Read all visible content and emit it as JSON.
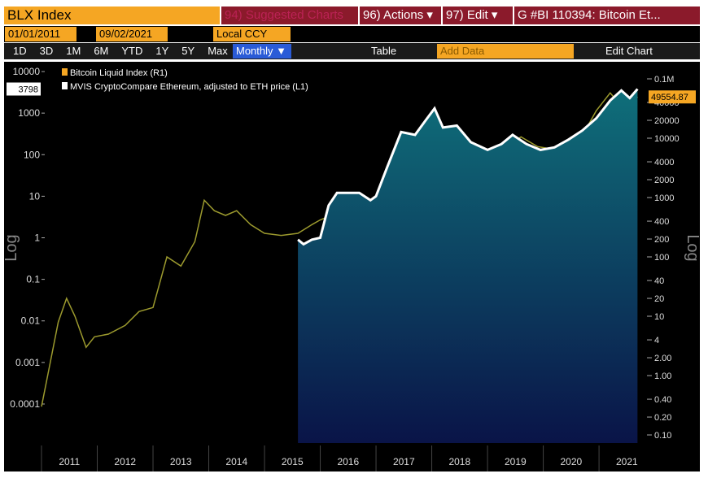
{
  "toolbar": {
    "ticker": "BLX Index",
    "suggested": "94) Suggested Charts",
    "actions": "96) Actions ▾",
    "edit": "97) Edit ▾",
    "chart_id": "G #BI 110394: Bitcoin Et...",
    "start_date": "01/01/2011",
    "end_date": "09/02/2021",
    "currency": "Local CCY",
    "periods": [
      "1D",
      "3D",
      "1M",
      "6M",
      "YTD",
      "1Y",
      "5Y",
      "Max"
    ],
    "frequency": "Monthly ▼",
    "table": "Table",
    "add_data": "Add Data",
    "edit_chart": "Edit Chart"
  },
  "chart_data": {
    "type": "line",
    "y_scale": "log",
    "y_label": "Log",
    "y2_label": "Log",
    "legend": "top-left",
    "xlim": [
      2011,
      2021.86
    ],
    "xticks": [
      2011,
      2012,
      2013,
      2014,
      2015,
      2016,
      2017,
      2018,
      2019,
      2020,
      2021
    ],
    "ylim": [
      1.15e-05,
      15700
    ],
    "yticks": [
      0.0001,
      0.001,
      0.01,
      0.1,
      1,
      10,
      100,
      1000,
      10000
    ],
    "y2lim": [
      0.073,
      182000
    ],
    "y2ticks": [
      {
        "value": 100000,
        "label": "0.1M"
      },
      40000,
      20000,
      10000,
      4000,
      2000,
      1000,
      400,
      200,
      100,
      40,
      20,
      10,
      4,
      {
        "value": 2,
        "label": "2.00"
      },
      {
        "value": 1,
        "label": "1.00"
      },
      {
        "value": 0.4,
        "label": "0.40"
      },
      {
        "value": 0.2,
        "label": "0.20"
      },
      {
        "value": 0.1,
        "label": "0.10"
      }
    ],
    "series": [
      {
        "name": "Bitcoin Liquid Index (R1)",
        "color": "#9c9a2e",
        "axis": "y2",
        "x": [
          2011.0,
          2011.1,
          2011.3,
          2011.45,
          2011.6,
          2011.8,
          2011.95,
          2012.2,
          2012.5,
          2012.75,
          2013.0,
          2013.25,
          2013.5,
          2013.75,
          2013.92,
          2014.1,
          2014.3,
          2014.5,
          2014.75,
          2015.0,
          2015.3,
          2015.6,
          2015.85,
          2016.0,
          2016.4,
          2016.6,
          2016.9,
          2017.2,
          2017.5,
          2017.75,
          2017.95,
          2018.1,
          2018.3,
          2018.6,
          2018.9,
          2019.1,
          2019.4,
          2019.6,
          2019.9,
          2020.2,
          2020.45,
          2020.7,
          2020.95,
          2021.2,
          2021.4,
          2021.55,
          2021.69
        ],
        "values": [
          0.3,
          0.9,
          8,
          20,
          10,
          3,
          4.5,
          5,
          7,
          12,
          14,
          100,
          70,
          180,
          900,
          600,
          500,
          600,
          350,
          250,
          230,
          250,
          350,
          420,
          600,
          650,
          900,
          1100,
          2500,
          5000,
          14000,
          10000,
          7000,
          6500,
          3800,
          3700,
          8000,
          10500,
          7200,
          6500,
          9500,
          11000,
          29000,
          58000,
          35000,
          33000,
          49554.87
        ]
      },
      {
        "name": "MVIS CryptoCompare Ethereum, adjusted to ETH price (L1)",
        "color": "#ffffff",
        "area_color": "#0f6f7a",
        "x": [
          2015.6,
          2015.7,
          2015.85,
          2016.0,
          2016.15,
          2016.3,
          2016.5,
          2016.7,
          2016.9,
          2017.0,
          2017.2,
          2017.45,
          2017.7,
          2017.9,
          2018.05,
          2018.2,
          2018.45,
          2018.7,
          2019.0,
          2019.25,
          2019.45,
          2019.7,
          2019.95,
          2020.2,
          2020.45,
          2020.7,
          2020.95,
          2021.2,
          2021.4,
          2021.55,
          2021.69
        ],
        "values": [
          0.9,
          0.7,
          0.9,
          1,
          6,
          12,
          12,
          12,
          8,
          10,
          50,
          350,
          300,
          700,
          1300,
          450,
          500,
          200,
          130,
          180,
          300,
          180,
          130,
          150,
          230,
          380,
          750,
          2000,
          3500,
          2300,
          3798
        ]
      }
    ]
  }
}
